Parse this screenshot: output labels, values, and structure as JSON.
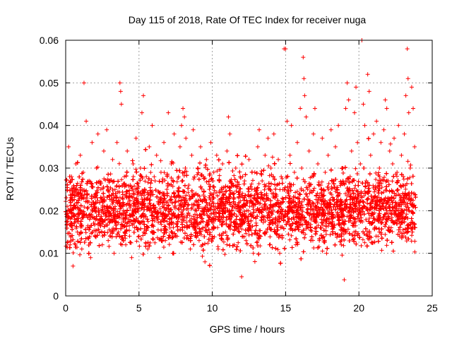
{
  "chart_data": {
    "type": "scatter",
    "title": "Day 115 of 2018, Rate Of TEC Index for receiver nuga",
    "xlabel": "GPS time / hours",
    "ylabel": "ROTI / TECUs",
    "xlim": [
      0,
      25
    ],
    "ylim": [
      0,
      0.06
    ],
    "xticks": [
      0,
      5,
      10,
      15,
      20,
      25
    ],
    "yticks": [
      0,
      0.01,
      0.02,
      0.03,
      0.04,
      0.05,
      0.06
    ],
    "xtick_labels": [
      "0",
      "5",
      "10",
      "15",
      "20",
      "25"
    ],
    "ytick_labels": [
      "0",
      "0.01",
      "0.02",
      "0.03",
      "0.04",
      "0.05",
      "0.06"
    ],
    "grid": true,
    "marker": "plus",
    "series_color": "#ff0000",
    "x_extent": [
      0,
      23.9
    ],
    "series": [
      {
        "points": [
          [
            0.1,
            0.021
          ],
          [
            0.2,
            0.035
          ],
          [
            0.3,
            0.012
          ],
          [
            0.4,
            0.028
          ],
          [
            0.5,
            0.007
          ],
          [
            0.6,
            0.018
          ],
          [
            0.7,
            0.031
          ],
          [
            0.8,
            0.015
          ],
          [
            0.9,
            0.024
          ],
          [
            1.0,
            0.033
          ],
          [
            1.1,
            0.011
          ],
          [
            1.2,
            0.029
          ],
          [
            1.25,
            0.05
          ],
          [
            1.3,
            0.019
          ],
          [
            1.4,
            0.041
          ],
          [
            1.5,
            0.016
          ],
          [
            1.6,
            0.027
          ],
          [
            1.7,
            0.009
          ],
          [
            1.8,
            0.036
          ],
          [
            1.9,
            0.022
          ],
          [
            2.0,
            0.014
          ],
          [
            2.1,
            0.03
          ],
          [
            2.2,
            0.038
          ],
          [
            2.3,
            0.017
          ],
          [
            2.4,
            0.025
          ],
          [
            2.5,
            0.012
          ],
          [
            2.6,
            0.034
          ],
          [
            2.7,
            0.02
          ],
          [
            2.8,
            0.039
          ],
          [
            2.9,
            0.013
          ],
          [
            3.0,
            0.027
          ],
          [
            3.1,
            0.018
          ],
          [
            3.2,
            0.032
          ],
          [
            3.3,
            0.01
          ],
          [
            3.4,
            0.024
          ],
          [
            3.5,
            0.036
          ],
          [
            3.6,
            0.015
          ],
          [
            3.7,
            0.05
          ],
          [
            3.75,
            0.048
          ],
          [
            3.8,
            0.045
          ],
          [
            3.9,
            0.021
          ],
          [
            4.0,
            0.028
          ],
          [
            4.1,
            0.012
          ],
          [
            4.2,
            0.034
          ],
          [
            4.3,
            0.018
          ],
          [
            4.4,
            0.026
          ],
          [
            4.5,
            0.009
          ],
          [
            4.6,
            0.031
          ],
          [
            4.7,
            0.016
          ],
          [
            4.8,
            0.037
          ],
          [
            4.9,
            0.022
          ],
          [
            5.0,
            0.014
          ],
          [
            5.1,
            0.03
          ],
          [
            5.2,
            0.043
          ],
          [
            5.3,
            0.047
          ],
          [
            5.4,
            0.019
          ],
          [
            5.5,
            0.028
          ],
          [
            5.6,
            0.011
          ],
          [
            5.7,
            0.035
          ],
          [
            5.8,
            0.024
          ],
          [
            5.9,
            0.04
          ],
          [
            6.0,
            0.015
          ],
          [
            6.1,
            0.027
          ],
          [
            6.2,
            0.033
          ],
          [
            6.3,
            0.018
          ],
          [
            6.4,
            0.009
          ],
          [
            6.5,
            0.029
          ],
          [
            6.6,
            0.021
          ],
          [
            6.7,
            0.036
          ],
          [
            6.8,
            0.013
          ],
          [
            6.9,
            0.025
          ],
          [
            7.0,
            0.043
          ],
          [
            7.1,
            0.017
          ],
          [
            7.2,
            0.031
          ],
          [
            7.3,
            0.01
          ],
          [
            7.4,
            0.038
          ],
          [
            7.5,
            0.022
          ],
          [
            7.6,
            0.014
          ],
          [
            7.7,
            0.028
          ],
          [
            7.8,
            0.035
          ],
          [
            7.9,
            0.04
          ],
          [
            8.0,
            0.044
          ],
          [
            8.1,
            0.042
          ],
          [
            8.2,
            0.037
          ],
          [
            8.3,
            0.019
          ],
          [
            8.4,
            0.026
          ],
          [
            8.5,
            0.011
          ],
          [
            8.6,
            0.033
          ],
          [
            8.7,
            0.039
          ],
          [
            8.8,
            0.016
          ],
          [
            8.9,
            0.024
          ],
          [
            9.0,
            0.03
          ],
          [
            9.1,
            0.013
          ],
          [
            9.2,
            0.035
          ],
          [
            9.3,
            0.02
          ],
          [
            9.4,
            0.028
          ],
          [
            9.5,
            0.008
          ],
          [
            9.6,
            0.032
          ],
          [
            9.7,
            0.017
          ],
          [
            9.8,
            0.025
          ],
          [
            9.9,
            0.036
          ],
          [
            10.0,
            0.014
          ],
          [
            10.1,
            0.029
          ],
          [
            10.2,
            0.021
          ],
          [
            10.3,
            0.033
          ],
          [
            10.4,
            0.011
          ],
          [
            10.5,
            0.027
          ],
          [
            10.6,
            0.018
          ],
          [
            10.7,
            0.031
          ],
          [
            10.8,
            0.024
          ],
          [
            10.9,
            0.015
          ],
          [
            11.0,
            0.034
          ],
          [
            11.1,
            0.042
          ],
          [
            11.2,
            0.038
          ],
          [
            11.3,
            0.02
          ],
          [
            11.4,
            0.026
          ],
          [
            11.5,
            0.012
          ],
          [
            11.6,
            0.03
          ],
          [
            11.7,
            0.017
          ],
          [
            11.8,
            0.023
          ],
          [
            11.9,
            0.028
          ],
          [
            12.0,
            0.0045
          ],
          [
            12.1,
            0.019
          ],
          [
            12.2,
            0.027
          ],
          [
            12.3,
            0.013
          ],
          [
            12.4,
            0.022
          ],
          [
            12.5,
            0.032
          ],
          [
            12.6,
            0.016
          ],
          [
            12.7,
            0.025
          ],
          [
            12.8,
            0.01
          ],
          [
            12.9,
            0.029
          ],
          [
            13.0,
            0.02
          ],
          [
            13.1,
            0.035
          ],
          [
            13.2,
            0.039
          ],
          [
            13.3,
            0.014
          ],
          [
            13.4,
            0.027
          ],
          [
            13.5,
            0.018
          ],
          [
            13.6,
            0.033
          ],
          [
            13.7,
            0.024
          ],
          [
            13.8,
            0.037
          ],
          [
            13.9,
            0.012
          ],
          [
            14.0,
            0.03
          ],
          [
            14.1,
            0.021
          ],
          [
            14.2,
            0.038
          ],
          [
            14.3,
            0.015
          ],
          [
            14.4,
            0.026
          ],
          [
            14.5,
            0.032
          ],
          [
            14.6,
            0.01
          ],
          [
            14.7,
            0.028
          ],
          [
            14.8,
            0.019
          ],
          [
            14.9,
            0.058
          ],
          [
            15.0,
            0.058
          ],
          [
            15.1,
            0.041
          ],
          [
            15.2,
            0.024
          ],
          [
            15.3,
            0.033
          ],
          [
            15.4,
            0.04
          ],
          [
            15.5,
            0.017
          ],
          [
            15.6,
            0.029
          ],
          [
            15.7,
            0.012
          ],
          [
            15.8,
            0.036
          ],
          [
            15.9,
            0.021
          ],
          [
            16.0,
            0.044
          ],
          [
            16.1,
            0.03
          ],
          [
            16.2,
            0.056
          ],
          [
            16.25,
            0.051
          ],
          [
            16.3,
            0.047
          ],
          [
            16.4,
            0.042
          ],
          [
            16.5,
            0.025
          ],
          [
            16.6,
            0.034
          ],
          [
            16.7,
            0.016
          ],
          [
            16.8,
            0.028
          ],
          [
            16.9,
            0.038
          ],
          [
            17.0,
            0.044
          ],
          [
            17.1,
            0.02
          ],
          [
            17.2,
            0.031
          ],
          [
            17.3,
            0.013
          ],
          [
            17.4,
            0.026
          ],
          [
            17.5,
            0.037
          ],
          [
            17.6,
            0.018
          ],
          [
            17.7,
            0.029
          ],
          [
            17.8,
            0.01
          ],
          [
            17.9,
            0.033
          ],
          [
            18.0,
            0.022
          ],
          [
            18.1,
            0.039
          ],
          [
            18.2,
            0.015
          ],
          [
            18.3,
            0.027
          ],
          [
            18.4,
            0.035
          ],
          [
            18.5,
            0.019
          ],
          [
            18.6,
            0.04
          ],
          [
            18.7,
            0.024
          ],
          [
            18.8,
            0.012
          ],
          [
            18.9,
            0.03
          ],
          [
            19.0,
            0.0038
          ],
          [
            19.1,
            0.044
          ],
          [
            19.2,
            0.05
          ],
          [
            19.3,
            0.046
          ],
          [
            19.4,
            0.028
          ],
          [
            19.5,
            0.034
          ],
          [
            19.6,
            0.017
          ],
          [
            19.7,
            0.043
          ],
          [
            19.8,
            0.049
          ],
          [
            19.9,
            0.036
          ],
          [
            20.0,
            0.022
          ],
          [
            20.1,
            0.031
          ],
          [
            20.2,
            0.06
          ],
          [
            20.3,
            0.045
          ],
          [
            20.4,
            0.04
          ],
          [
            20.5,
            0.027
          ],
          [
            20.6,
            0.052
          ],
          [
            20.7,
            0.048
          ],
          [
            20.8,
            0.033
          ],
          [
            20.9,
            0.019
          ],
          [
            21.0,
            0.038
          ],
          [
            21.1,
            0.025
          ],
          [
            21.2,
            0.041
          ],
          [
            21.3,
            0.014
          ],
          [
            21.4,
            0.03
          ],
          [
            21.5,
            0.036
          ],
          [
            21.6,
            0.021
          ],
          [
            21.7,
            0.039
          ],
          [
            21.8,
            0.046
          ],
          [
            21.9,
            0.044
          ],
          [
            22.0,
            0.027
          ],
          [
            22.1,
            0.034
          ],
          [
            22.2,
            0.016
          ],
          [
            22.3,
            0.031
          ],
          [
            22.4,
            0.037
          ],
          [
            22.5,
            0.022
          ],
          [
            22.6,
            0.029
          ],
          [
            22.7,
            0.04
          ],
          [
            22.8,
            0.015
          ],
          [
            22.9,
            0.033
          ],
          [
            23.0,
            0.026
          ],
          [
            23.1,
            0.038
          ],
          [
            23.2,
            0.047
          ],
          [
            23.3,
            0.058
          ],
          [
            23.35,
            0.051
          ],
          [
            23.4,
            0.043
          ],
          [
            23.5,
            0.03
          ],
          [
            23.6,
            0.049
          ],
          [
            23.7,
            0.044
          ],
          [
            23.8,
            0.035
          ]
        ]
      }
    ]
  }
}
